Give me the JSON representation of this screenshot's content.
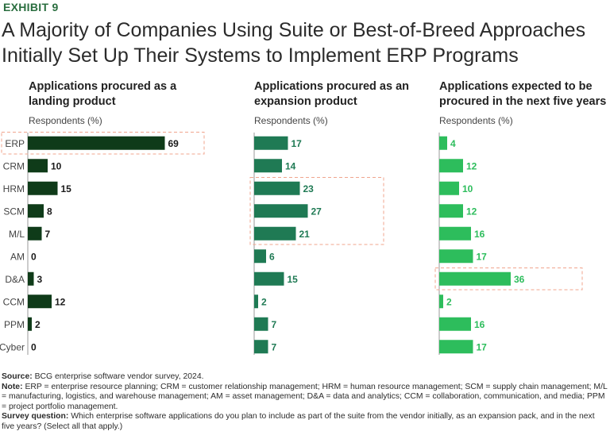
{
  "exhibit_label": "EXHIBIT 9",
  "title": "A Majority of Companies Using Suite or Best-of-Breed Approaches Initially Set Up Their Systems to Implement ERP Programs",
  "panels": [
    {
      "title": "Applications procured as a landing product",
      "respondents_label": "Respondents (%)"
    },
    {
      "title": "Applications procured as an expansion product",
      "respondents_label": "Respondents (%)"
    },
    {
      "title": "Applications expected to be procured in the next five years",
      "respondents_label": "Respondents (%)"
    }
  ],
  "colors": {
    "landing": "#0f3b19",
    "expansion": "#1f7a54",
    "future": "#2dbd5c",
    "highlight_box": "#f0a58e",
    "axis": "#9a9a9a"
  },
  "chart_data": {
    "type": "bar",
    "orientation": "horizontal",
    "categories": [
      "ERP",
      "CRM",
      "HRM",
      "SCM",
      "M/L",
      "AM",
      "D&A",
      "CCM",
      "PPM",
      "Cyber"
    ],
    "unit": "Respondents (%)",
    "series": [
      {
        "name": "Applications procured as a landing product",
        "values": [
          69,
          10,
          15,
          8,
          7,
          0,
          3,
          12,
          2,
          0
        ],
        "highlight": [
          "ERP"
        ]
      },
      {
        "name": "Applications procured as an expansion product",
        "values": [
          17,
          14,
          23,
          27,
          21,
          6,
          15,
          2,
          7,
          7
        ],
        "highlight": [
          "HRM",
          "SCM",
          "M/L"
        ]
      },
      {
        "name": "Applications expected to be procured in the next five years",
        "values": [
          4,
          12,
          10,
          12,
          16,
          17,
          36,
          2,
          16,
          17
        ],
        "highlight": [
          "D&A"
        ]
      }
    ]
  },
  "footer": {
    "source_label": "Source:",
    "source_text": "BCG enterprise software vendor survey, 2024.",
    "note_label": "Note:",
    "note_text": "ERP = enterprise resource planning; CRM = customer relationship management; HRM = human resource management; SCM = supply chain management; M/L = manufacturing, logistics, and warehouse management; AM = asset management; D&A = data and analytics; CCM = collaboration, communication, and media; PPM = project portfolio management.",
    "question_label": "Survey question:",
    "question_text": "Which enterprise software applications do you plan to include as part of the suite from the vendor initially, as an expansion pack, and in the next five years? (Select all that apply.)"
  }
}
